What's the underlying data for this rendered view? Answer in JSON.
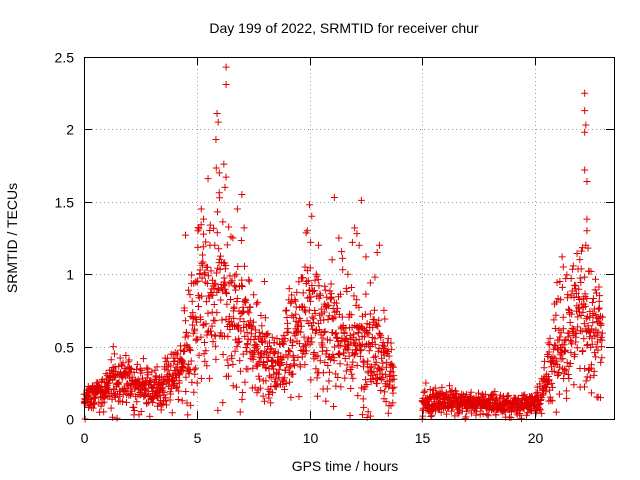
{
  "chart_data": {
    "type": "scatter",
    "title": "Day 199 of 2022, SRMTID for receiver chur",
    "xlabel": "GPS time / hours",
    "ylabel": "SRMTID / TECUs",
    "xlim": [
      0,
      23.5
    ],
    "ylim": [
      0,
      2.5
    ],
    "xticks": [
      "0",
      "5",
      "10",
      "15",
      "20"
    ],
    "yticks": [
      "0",
      "0.5",
      "1",
      "1.5",
      "2",
      "2.5"
    ],
    "grid": true,
    "marker": "plus",
    "series": [
      {
        "name": "SRMTID",
        "color": "#e00000",
        "segments": [
          {
            "start": 0.0,
            "end": 13.75,
            "profile": [
              [
                0.0,
                0.15
              ],
              [
                0.5,
                0.17
              ],
              [
                1.0,
                0.22
              ],
              [
                1.5,
                0.26
              ],
              [
                2.0,
                0.25
              ],
              [
                2.5,
                0.22
              ],
              [
                3.0,
                0.2
              ],
              [
                3.5,
                0.23
              ],
              [
                4.0,
                0.3
              ],
              [
                4.5,
                0.45
              ],
              [
                5.0,
                0.7
              ],
              [
                5.5,
                0.85
              ],
              [
                6.0,
                0.9
              ],
              [
                6.5,
                0.75
              ],
              [
                7.0,
                0.7
              ],
              [
                7.5,
                0.5
              ],
              [
                8.0,
                0.45
              ],
              [
                8.5,
                0.35
              ],
              [
                9.0,
                0.5
              ],
              [
                9.5,
                0.6
              ],
              [
                10.0,
                0.7
              ],
              [
                10.5,
                0.6
              ],
              [
                11.0,
                0.65
              ],
              [
                11.5,
                0.55
              ],
              [
                12.0,
                0.5
              ],
              [
                12.5,
                0.45
              ],
              [
                13.0,
                0.5
              ],
              [
                13.5,
                0.35
              ],
              [
                13.75,
                0.25
              ]
            ]
          },
          {
            "start": 15.0,
            "end": 20.3,
            "profile": [
              [
                15.0,
                0.13
              ],
              [
                16.0,
                0.12
              ],
              [
                17.0,
                0.12
              ],
              [
                18.0,
                0.1
              ],
              [
                19.0,
                0.1
              ],
              [
                20.0,
                0.12
              ],
              [
                20.3,
                0.15
              ]
            ]
          },
          {
            "start": 20.3,
            "end": 23.0,
            "profile": [
              [
                20.3,
                0.18
              ],
              [
                20.7,
                0.35
              ],
              [
                21.0,
                0.55
              ],
              [
                21.5,
                0.65
              ],
              [
                22.0,
                0.75
              ],
              [
                22.5,
                0.6
              ],
              [
                23.0,
                0.6
              ]
            ]
          }
        ],
        "points": [
          {
            "x": 6.3,
            "y": 2.43
          },
          {
            "x": 6.3,
            "y": 2.31
          },
          {
            "x": 5.9,
            "y": 2.11
          },
          {
            "x": 5.95,
            "y": 2.05
          },
          {
            "x": 5.85,
            "y": 1.93
          },
          {
            "x": 6.2,
            "y": 1.76
          },
          {
            "x": 6.0,
            "y": 1.7
          },
          {
            "x": 6.3,
            "y": 1.67
          },
          {
            "x": 6.25,
            "y": 1.6
          },
          {
            "x": 5.5,
            "y": 1.66
          },
          {
            "x": 7.0,
            "y": 1.55
          },
          {
            "x": 6.8,
            "y": 1.45
          },
          {
            "x": 5.2,
            "y": 1.45
          },
          {
            "x": 5.3,
            "y": 1.38
          },
          {
            "x": 7.1,
            "y": 1.32
          },
          {
            "x": 5.05,
            "y": 1.3
          },
          {
            "x": 4.5,
            "y": 1.27
          },
          {
            "x": 6.6,
            "y": 1.25
          },
          {
            "x": 5.8,
            "y": 1.2
          },
          {
            "x": 10.0,
            "y": 1.48
          },
          {
            "x": 10.1,
            "y": 1.4
          },
          {
            "x": 9.9,
            "y": 1.3
          },
          {
            "x": 10.05,
            "y": 1.22
          },
          {
            "x": 10.4,
            "y": 1.2
          },
          {
            "x": 9.8,
            "y": 1.05
          },
          {
            "x": 11.1,
            "y": 1.53
          },
          {
            "x": 12.3,
            "y": 1.51
          },
          {
            "x": 12.0,
            "y": 1.32
          },
          {
            "x": 12.1,
            "y": 1.28
          },
          {
            "x": 11.3,
            "y": 1.25
          },
          {
            "x": 11.9,
            "y": 1.22
          },
          {
            "x": 12.2,
            "y": 1.2
          },
          {
            "x": 13.1,
            "y": 1.2
          },
          {
            "x": 13.0,
            "y": 1.15
          },
          {
            "x": 12.5,
            "y": 1.12
          },
          {
            "x": 11.0,
            "y": 1.1
          },
          {
            "x": 11.7,
            "y": 1.0
          },
          {
            "x": 10.3,
            "y": 1.0
          },
          {
            "x": 8.0,
            "y": 0.95
          },
          {
            "x": 9.1,
            "y": 0.9
          },
          {
            "x": 12.9,
            "y": 0.98
          },
          {
            "x": 12.7,
            "y": 0.94
          },
          {
            "x": 13.3,
            "y": 0.75
          },
          {
            "x": 1.3,
            "y": 0.5
          },
          {
            "x": 1.35,
            "y": 0.45
          },
          {
            "x": 3.6,
            "y": 0.42
          },
          {
            "x": 12.35,
            "y": 0.03
          },
          {
            "x": 12.6,
            "y": 0.05
          },
          {
            "x": 12.7,
            "y": 0.02
          },
          {
            "x": 12.55,
            "y": 0.01
          },
          {
            "x": 12.4,
            "y": 0.08
          },
          {
            "x": 0.05,
            "y": 0.0
          },
          {
            "x": 15.0,
            "y": 0.0
          },
          {
            "x": 15.02,
            "y": 0.02
          },
          {
            "x": 22.2,
            "y": 2.25
          },
          {
            "x": 22.2,
            "y": 2.13
          },
          {
            "x": 22.25,
            "y": 2.03
          },
          {
            "x": 22.2,
            "y": 1.98
          },
          {
            "x": 22.2,
            "y": 1.72
          },
          {
            "x": 22.3,
            "y": 1.64
          },
          {
            "x": 22.3,
            "y": 1.38
          },
          {
            "x": 22.3,
            "y": 1.3
          },
          {
            "x": 22.25,
            "y": 1.2
          },
          {
            "x": 22.35,
            "y": 1.18
          },
          {
            "x": 22.4,
            "y": 1.02
          },
          {
            "x": 21.2,
            "y": 1.12
          },
          {
            "x": 21.25,
            "y": 1.05
          },
          {
            "x": 21.1,
            "y": 0.95
          },
          {
            "x": 22.2,
            "y": 0.98
          },
          {
            "x": 21.8,
            "y": 0.92
          },
          {
            "x": 21.6,
            "y": 0.85
          },
          {
            "x": 22.7,
            "y": 0.72
          },
          {
            "x": 22.9,
            "y": 0.71
          },
          {
            "x": 22.8,
            "y": 0.15
          },
          {
            "x": 22.5,
            "y": 0.18
          },
          {
            "x": 22.0,
            "y": 0.22
          },
          {
            "x": 21.5,
            "y": 0.28
          },
          {
            "x": 21.0,
            "y": 0.3
          },
          {
            "x": 20.1,
            "y": 0.22
          }
        ]
      }
    ]
  }
}
